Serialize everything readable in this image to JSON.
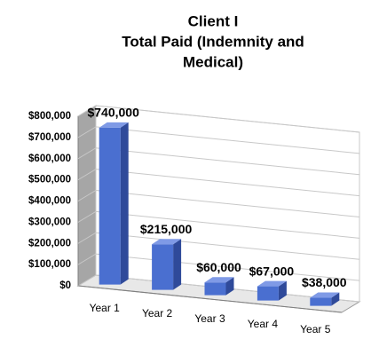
{
  "chart_data": {
    "type": "bar3d",
    "title": [
      "Client I",
      "Total Paid (Indemnity and",
      "Medical)"
    ],
    "categories": [
      "Year 1",
      "Year 2",
      "Year 3",
      "Year 4",
      "Year 5"
    ],
    "values": [
      740000,
      215000,
      60000,
      67000,
      38000
    ],
    "value_labels": [
      "$740,000",
      "$215,000",
      "$60,000",
      "$67,000",
      "$38,000"
    ],
    "color": "#4a6fd0",
    "ylim": [
      0,
      800000
    ],
    "yticks": [
      {
        "value": 0,
        "label": "$0"
      },
      {
        "value": 100000,
        "label": "$100,000"
      },
      {
        "value": 200000,
        "label": "$200,000"
      },
      {
        "value": 300000,
        "label": "$300,000"
      },
      {
        "value": 400000,
        "label": "$400,000"
      },
      {
        "value": 500000,
        "label": "$500,000"
      },
      {
        "value": 600000,
        "label": "$600,000"
      },
      {
        "value": 700000,
        "label": "$700,000"
      },
      {
        "value": 800000,
        "label": "$800,000"
      }
    ],
    "grid": true
  }
}
